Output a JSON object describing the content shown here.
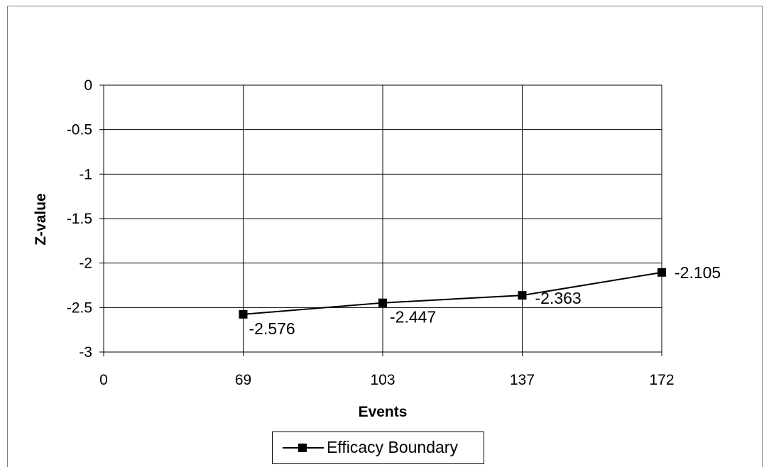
{
  "chart_data": {
    "type": "line",
    "title": "",
    "xlabel": "Events",
    "ylabel": "Z-value",
    "x_ticks": [
      "0",
      "69",
      "103",
      "137",
      "172"
    ],
    "y_ticks": [
      "0",
      "-0.5",
      "-1",
      "-1.5",
      "-2",
      "-2.5",
      "-3"
    ],
    "ylim": [
      -3,
      0
    ],
    "grid": true,
    "legend_position": "bottom",
    "series": [
      {
        "name": "Efficacy Boundary",
        "x": [
          "69",
          "103",
          "137",
          "172"
        ],
        "values": [
          -2.576,
          -2.447,
          -2.363,
          -2.105
        ],
        "labels": [
          "-2.576",
          "-2.447",
          "-2.363",
          "-2.105"
        ],
        "color": "#000000",
        "marker": "square"
      }
    ]
  }
}
